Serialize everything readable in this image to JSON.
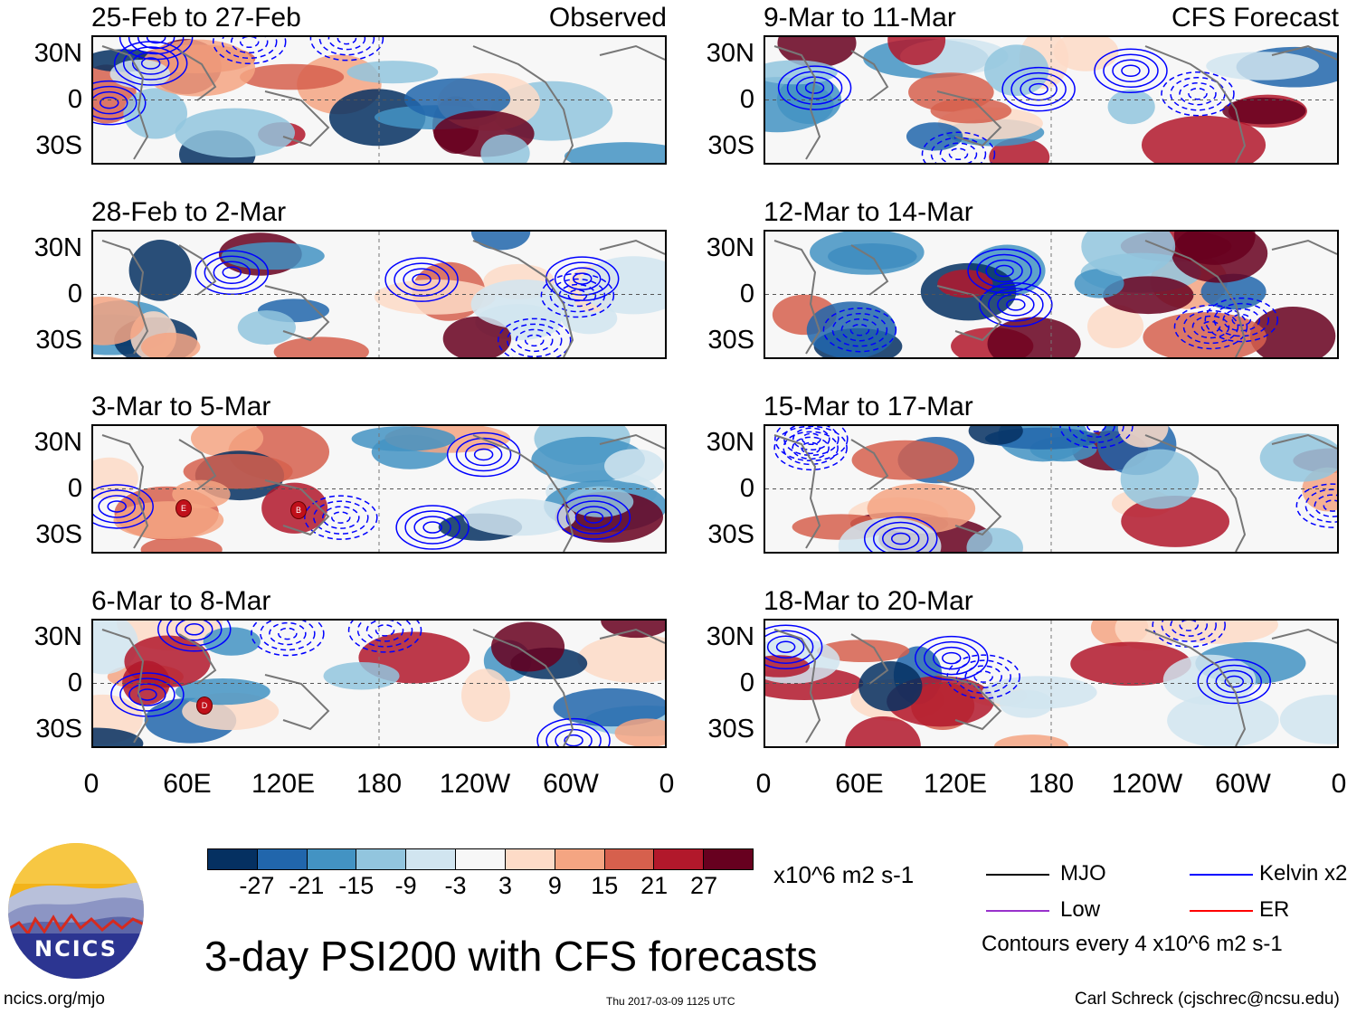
{
  "panels": [
    {
      "title": "25-Feb to 27-Feb",
      "tag": "Observed"
    },
    {
      "title": "28-Feb to 2-Mar",
      "tag": ""
    },
    {
      "title": "3-Mar to 5-Mar",
      "tag": ""
    },
    {
      "title": "6-Mar to 8-Mar",
      "tag": ""
    },
    {
      "title": "9-Mar to 11-Mar",
      "tag": "CFS Forecast"
    },
    {
      "title": "12-Mar to 14-Mar",
      "tag": ""
    },
    {
      "title": "15-Mar to 17-Mar",
      "tag": ""
    },
    {
      "title": "18-Mar to 20-Mar",
      "tag": ""
    }
  ],
  "lat_labels": [
    "30N",
    "0",
    "30S"
  ],
  "lon_labels": [
    "0",
    "60E",
    "120E",
    "180",
    "120W",
    "60W",
    "0"
  ],
  "colorbar": {
    "colors": [
      "#053061",
      "#2166ac",
      "#4393c3",
      "#92c5de",
      "#d1e5f0",
      "#f7f7f7",
      "#fddbc7",
      "#f4a582",
      "#d6604d",
      "#b2182b",
      "#67001f"
    ],
    "labels": [
      "-27",
      "-21",
      "-15",
      "-9",
      "-3",
      "3",
      "9",
      "15",
      "21",
      "27"
    ],
    "units": "x10^6 m2 s-1"
  },
  "legend": {
    "items": [
      {
        "label": "MJO",
        "color": "#000000"
      },
      {
        "label": "Kelvin x2",
        "color": "#0000ff"
      },
      {
        "label": "Low",
        "color": "#9932cc"
      },
      {
        "label": "ER",
        "color": "#ff0000"
      }
    ],
    "note": "Contours every 4 x10^6 m2 s-1"
  },
  "main_title": "3-day PSI200 with CFS forecasts",
  "logo_text": "NCICS",
  "footer": {
    "left": "ncics.org/mjo",
    "center": "Thu 2017-03-09 1125 UTC",
    "right": "Carl Schreck (cjschrec@ncsu.edu)"
  },
  "tc_markers": [
    {
      "panel": 2,
      "letter": "E"
    },
    {
      "panel": 2,
      "letter": "B"
    },
    {
      "panel": 3,
      "letter": "D"
    }
  ]
}
